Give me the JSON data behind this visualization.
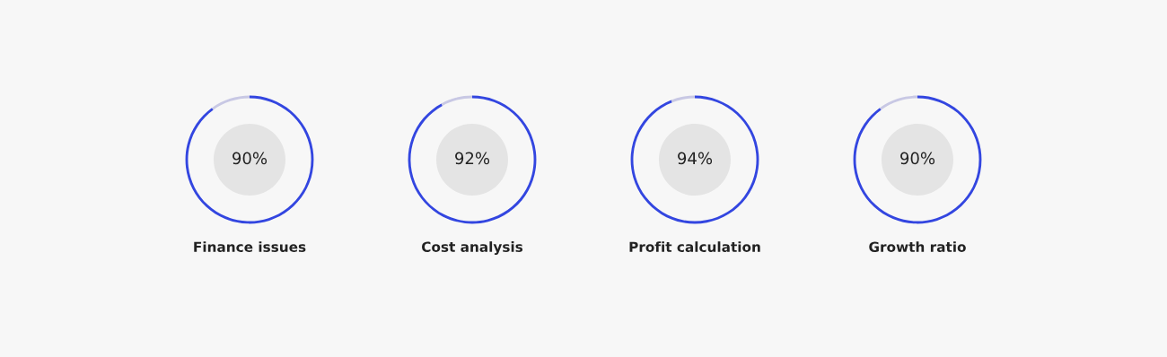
{
  "chart_data": [
    {
      "type": "donut",
      "title": "Finance issues",
      "categories": [
        null,
        null
      ],
      "values": [
        90,
        10
      ],
      "colors": [
        "#3346e0",
        "#c8c8e4"
      ],
      "value_labels": [
        "90%",
        null
      ]
    },
    {
      "type": "donut",
      "title": "Cost analysis",
      "categories": [
        null,
        null
      ],
      "values": [
        92,
        8
      ],
      "colors": [
        "#3346e0",
        "#c8c8e4"
      ],
      "value_labels": [
        "92%",
        null
      ]
    },
    {
      "type": "donut",
      "title": "Profit calculation",
      "categories": [
        null,
        null
      ],
      "values": [
        94,
        6
      ],
      "colors": [
        "#3346e0",
        "#c8c8e4"
      ],
      "value_labels": [
        "94%",
        null
      ]
    },
    {
      "type": "donut",
      "title": "Growth ratio",
      "categories": [
        null,
        null
      ],
      "values": [
        90,
        10
      ],
      "colors": [
        "#3346e0",
        "#c8c8e4"
      ],
      "value_labels": [
        "90%",
        null
      ]
    }
  ]
}
